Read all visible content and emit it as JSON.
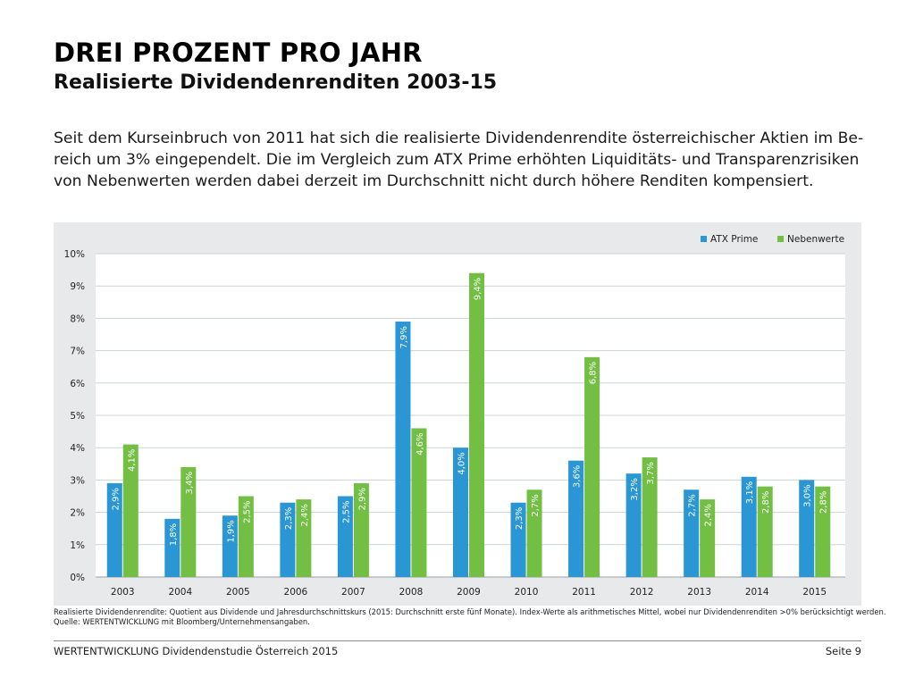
{
  "header": {
    "title": "DREI PROZENT PRO JAHR",
    "subtitle": "Realisierte Dividendenrenditen 2003-15"
  },
  "intro": {
    "lines": [
      "Seit dem Kurseinbruch von 2011 hat sich die realisierte Dividendenrendite österreichischer Aktien im Be-",
      "reich um 3% eingependelt. Die im Vergleich zum ATX Prime erhöhten Liquiditäts- und Transparenzrisiken",
      "von Nebenwerten werden dabei derzeit im Durchschnitt nicht durch höhere Renditen kompensiert."
    ]
  },
  "chart_data": {
    "type": "bar",
    "title": "Realisierte Dividendenrenditen 2003-15",
    "xlabel": "",
    "ylabel": "",
    "categories": [
      "2003",
      "2004",
      "2005",
      "2006",
      "2007",
      "2008",
      "2009",
      "2010",
      "2011",
      "2012",
      "2013",
      "2014",
      "2015"
    ],
    "series": [
      {
        "name": "ATX Prime",
        "color": "#2a96d4",
        "values": [
          2.9,
          1.8,
          1.9,
          2.3,
          2.5,
          7.9,
          4.0,
          2.3,
          3.6,
          3.2,
          2.7,
          3.1,
          3.0
        ],
        "labels": [
          "2,9%",
          "1,8%",
          "1,9%",
          "2,3%",
          "2,5%",
          "7,9%",
          "4,0%",
          "2,3%",
          "3,6%",
          "3,2%",
          "2,7%",
          "3,1%",
          "3,0%"
        ]
      },
      {
        "name": "Nebenwerte",
        "color": "#72bf44",
        "values": [
          4.1,
          3.4,
          2.5,
          2.4,
          2.9,
          4.6,
          9.4,
          2.7,
          6.8,
          3.7,
          2.4,
          2.8,
          2.8
        ],
        "labels": [
          "4,1%",
          "3,4%",
          "2,5%",
          "2,4%",
          "2,9%",
          "4,6%",
          "9,4%",
          "2,7%",
          "6,8%",
          "3,7%",
          "2,4%",
          "2,8%",
          "2,8%"
        ]
      }
    ],
    "ylim": [
      0,
      10
    ],
    "yticks": [
      0,
      1,
      2,
      3,
      4,
      5,
      6,
      7,
      8,
      9,
      10
    ],
    "ytick_labels": [
      "0%",
      "1%",
      "2%",
      "3%",
      "4%",
      "5%",
      "6%",
      "7%",
      "8%",
      "9%",
      "10%"
    ],
    "grid": true,
    "legend": "top-right",
    "data_labels": "inside-bar-rotated"
  },
  "notes": {
    "line1": "Realisierte Dividendenrendite: Quotient aus Dividende und Jahresdurchschnittskurs (2015: Durchschnitt erste fünf Monate). Index-Werte als arithmetisches Mittel, wobei nur Dividendenrenditen >0% berücksichtigt werden.",
    "line2": "Quelle: WERTENTWICKLUNG mit Bloomberg/Unternehmensangaben."
  },
  "footer": {
    "left": "WERTENTWICKLUNG Dividendenstudie Österreich 2015",
    "right": "Seite 9"
  }
}
